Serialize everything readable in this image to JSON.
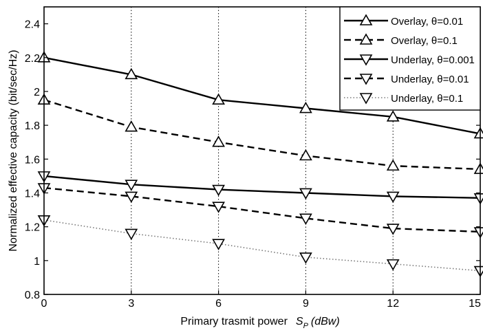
{
  "chart_data": {
    "type": "line",
    "title": "",
    "xlabel": "Primary trasmit power",
    "xlabel_symbol": "S",
    "xlabel_subscript": "P",
    "xlabel_unit": "(dBw)",
    "ylabel": "Normalized effective capacity (bit/sec/Hz)",
    "x": [
      0,
      3,
      6,
      9,
      12,
      15
    ],
    "xlim": [
      0,
      15
    ],
    "ylim": [
      0.8,
      2.5
    ],
    "xticks": [
      "0",
      "3",
      "6",
      "9",
      "12",
      "15"
    ],
    "yticks": [
      "0.8",
      "1",
      "1.2",
      "1.4",
      "1.6",
      "1.8",
      "2",
      "2.2",
      "2.4"
    ],
    "ytick_values": [
      0.8,
      1.0,
      1.2,
      1.4,
      1.6,
      1.8,
      2.0,
      2.2,
      2.4
    ],
    "grid": "x-dotted",
    "legend_position": "top-right",
    "series": [
      {
        "name": "Overlay, θ=0.01",
        "line": "solid",
        "marker": "triangle-up",
        "values": [
          2.2,
          2.1,
          1.95,
          1.9,
          1.85,
          1.75
        ]
      },
      {
        "name": "Overlay, θ=0.1",
        "line": "dashed",
        "marker": "triangle-up",
        "values": [
          1.95,
          1.79,
          1.7,
          1.62,
          1.56,
          1.54
        ]
      },
      {
        "name": "Underlay, θ=0.001",
        "line": "solid",
        "marker": "triangle-down",
        "values": [
          1.5,
          1.45,
          1.42,
          1.4,
          1.38,
          1.37
        ]
      },
      {
        "name": "Underlay, θ=0.01",
        "line": "dashed",
        "marker": "triangle-down",
        "values": [
          1.43,
          1.38,
          1.32,
          1.25,
          1.19,
          1.17
        ]
      },
      {
        "name": "Underlay, θ=0.1",
        "line": "dotted",
        "marker": "triangle-down",
        "values": [
          1.24,
          1.16,
          1.1,
          1.02,
          0.98,
          0.94
        ]
      }
    ]
  }
}
